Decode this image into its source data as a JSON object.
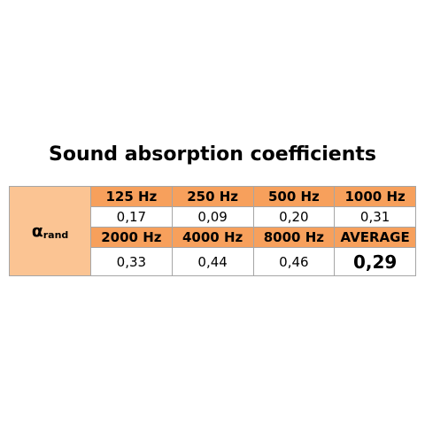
{
  "title": "Sound absorption coefficients",
  "table": {
    "row_label": {
      "symbol": "α",
      "subscript": "rand"
    },
    "rows": [
      [
        "125 Hz",
        "250 Hz",
        "500 Hz",
        "1000 Hz"
      ],
      [
        "0,17",
        "0,09",
        "0,20",
        "0,31"
      ],
      [
        "2000 Hz",
        "4000 Hz",
        "8000 Hz",
        "AVERAGE"
      ],
      [
        "0,33",
        "0,44",
        "0,46",
        "0,29"
      ]
    ]
  }
}
